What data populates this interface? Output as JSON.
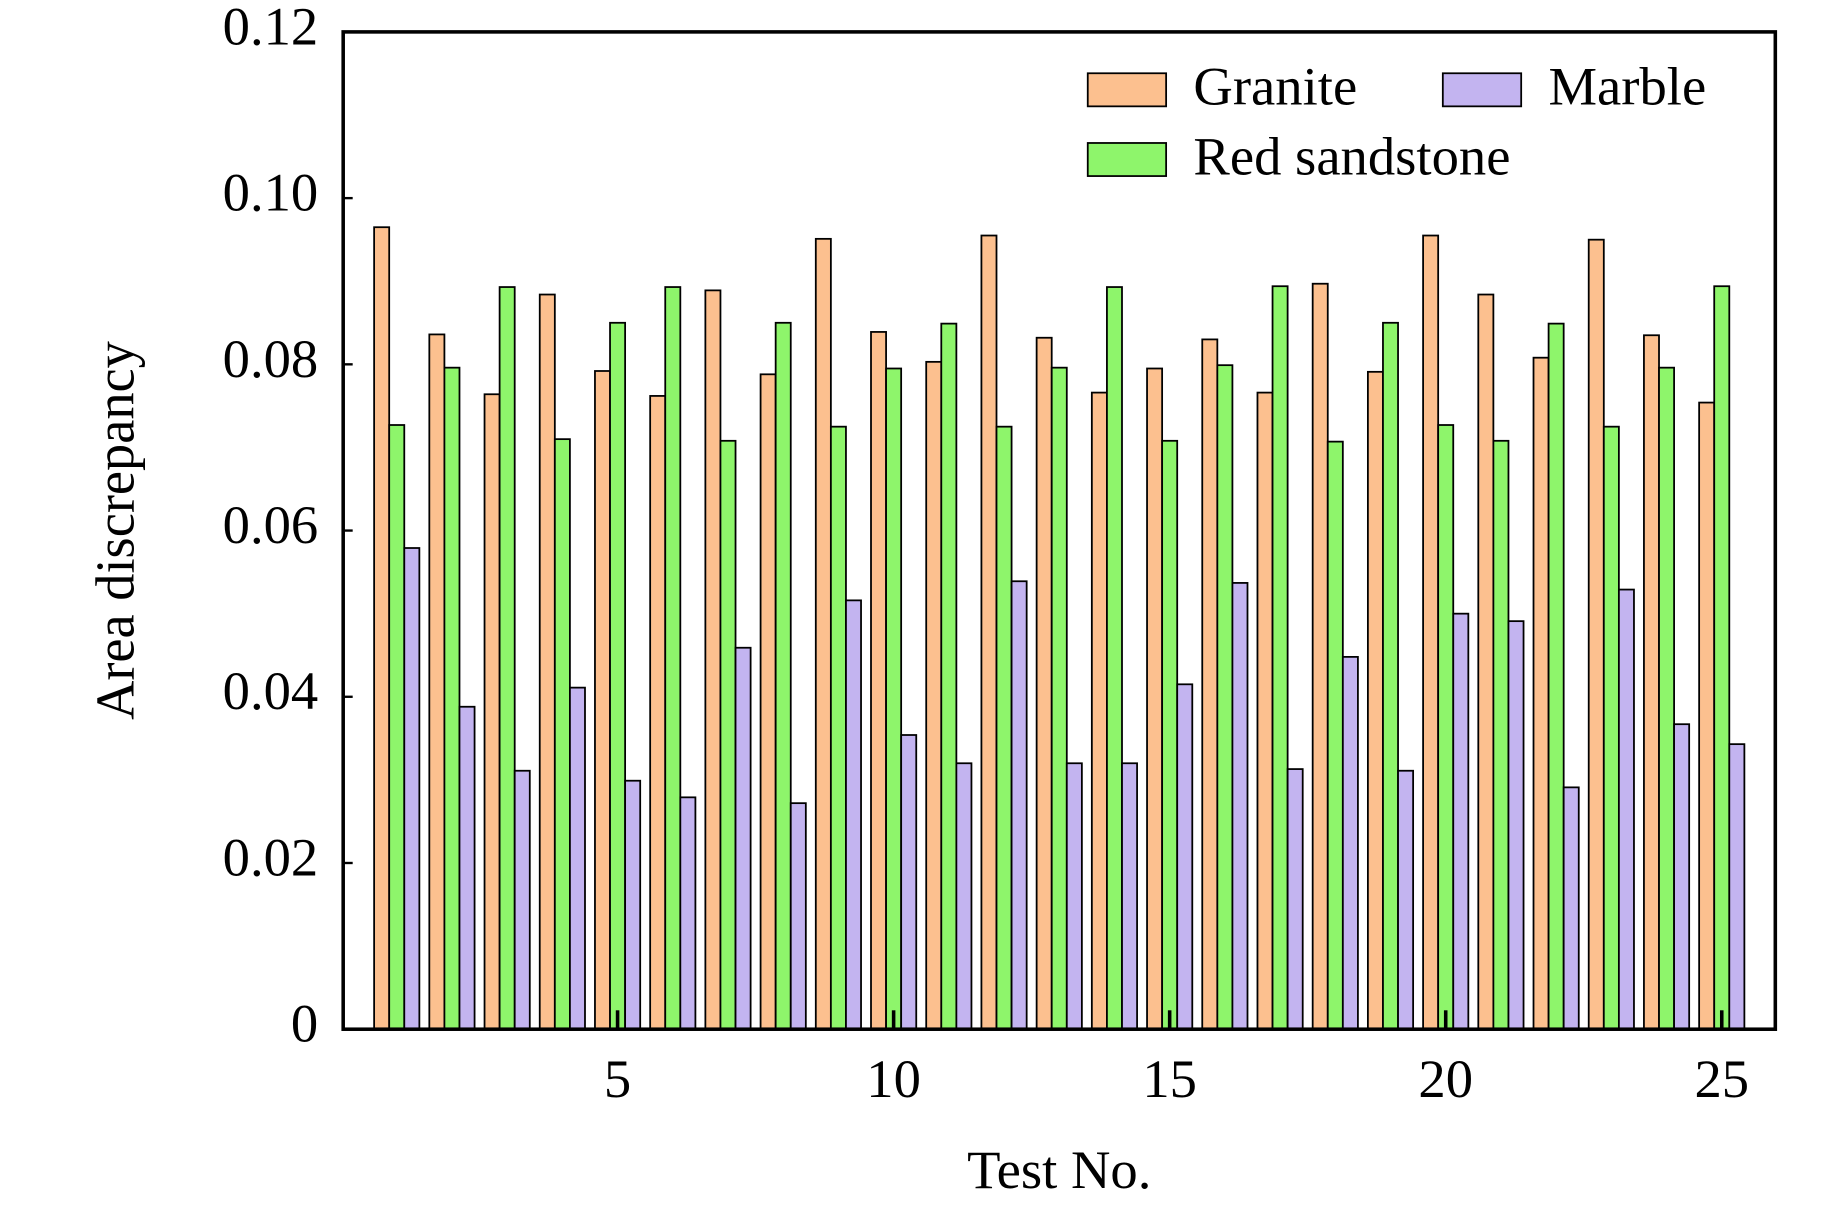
{
  "chart_data": {
    "type": "bar",
    "xlabel": "Test No.",
    "ylabel": "Area discrepancy",
    "x": [
      1,
      2,
      3,
      4,
      5,
      6,
      7,
      8,
      9,
      10,
      11,
      12,
      13,
      14,
      15,
      16,
      17,
      18,
      19,
      20,
      21,
      22,
      23,
      24,
      25
    ],
    "xlim": [
      0.03,
      25.97
    ],
    "xticks": [
      5,
      10,
      15,
      20,
      25
    ],
    "ylim": [
      0,
      0.12
    ],
    "yticks": [
      0,
      0.02,
      0.04,
      0.06,
      0.08,
      {
        "value": 0.1,
        "label": "0.10"
      },
      0.12
    ],
    "legend": "upper right",
    "series": [
      {
        "name": "Granite",
        "color": "#fcc08f",
        "values": [
          0.0965,
          0.0836,
          0.0764,
          0.0884,
          0.0792,
          0.0762,
          0.0889,
          0.0788,
          0.0951,
          0.0839,
          0.0803,
          0.0955,
          0.0832,
          0.0766,
          0.0795,
          0.083,
          0.0766,
          0.0897,
          0.0791,
          0.0955,
          0.0884,
          0.0808,
          0.095,
          0.0835,
          0.0754
        ]
      },
      {
        "name": "Red sandstone",
        "color": "#8ef56b",
        "values": [
          0.0727,
          0.0796,
          0.0893,
          0.071,
          0.085,
          0.0893,
          0.0708,
          0.085,
          0.0725,
          0.0795,
          0.0849,
          0.0725,
          0.0796,
          0.0893,
          0.0708,
          0.0799,
          0.0894,
          0.0707,
          0.085,
          0.0727,
          0.0708,
          0.0849,
          0.0725,
          0.0796,
          0.0894
        ]
      },
      {
        "name": "Marble",
        "color": "#c3b4f0",
        "values": [
          0.0579,
          0.0388,
          0.0311,
          0.0411,
          0.0299,
          0.0279,
          0.0459,
          0.0272,
          0.0516,
          0.0354,
          0.032,
          0.0539,
          0.032,
          0.032,
          0.0415,
          0.0537,
          0.0313,
          0.0448,
          0.0311,
          0.05,
          0.0491,
          0.0291,
          0.0529,
          0.0367,
          0.0343
        ]
      }
    ]
  }
}
